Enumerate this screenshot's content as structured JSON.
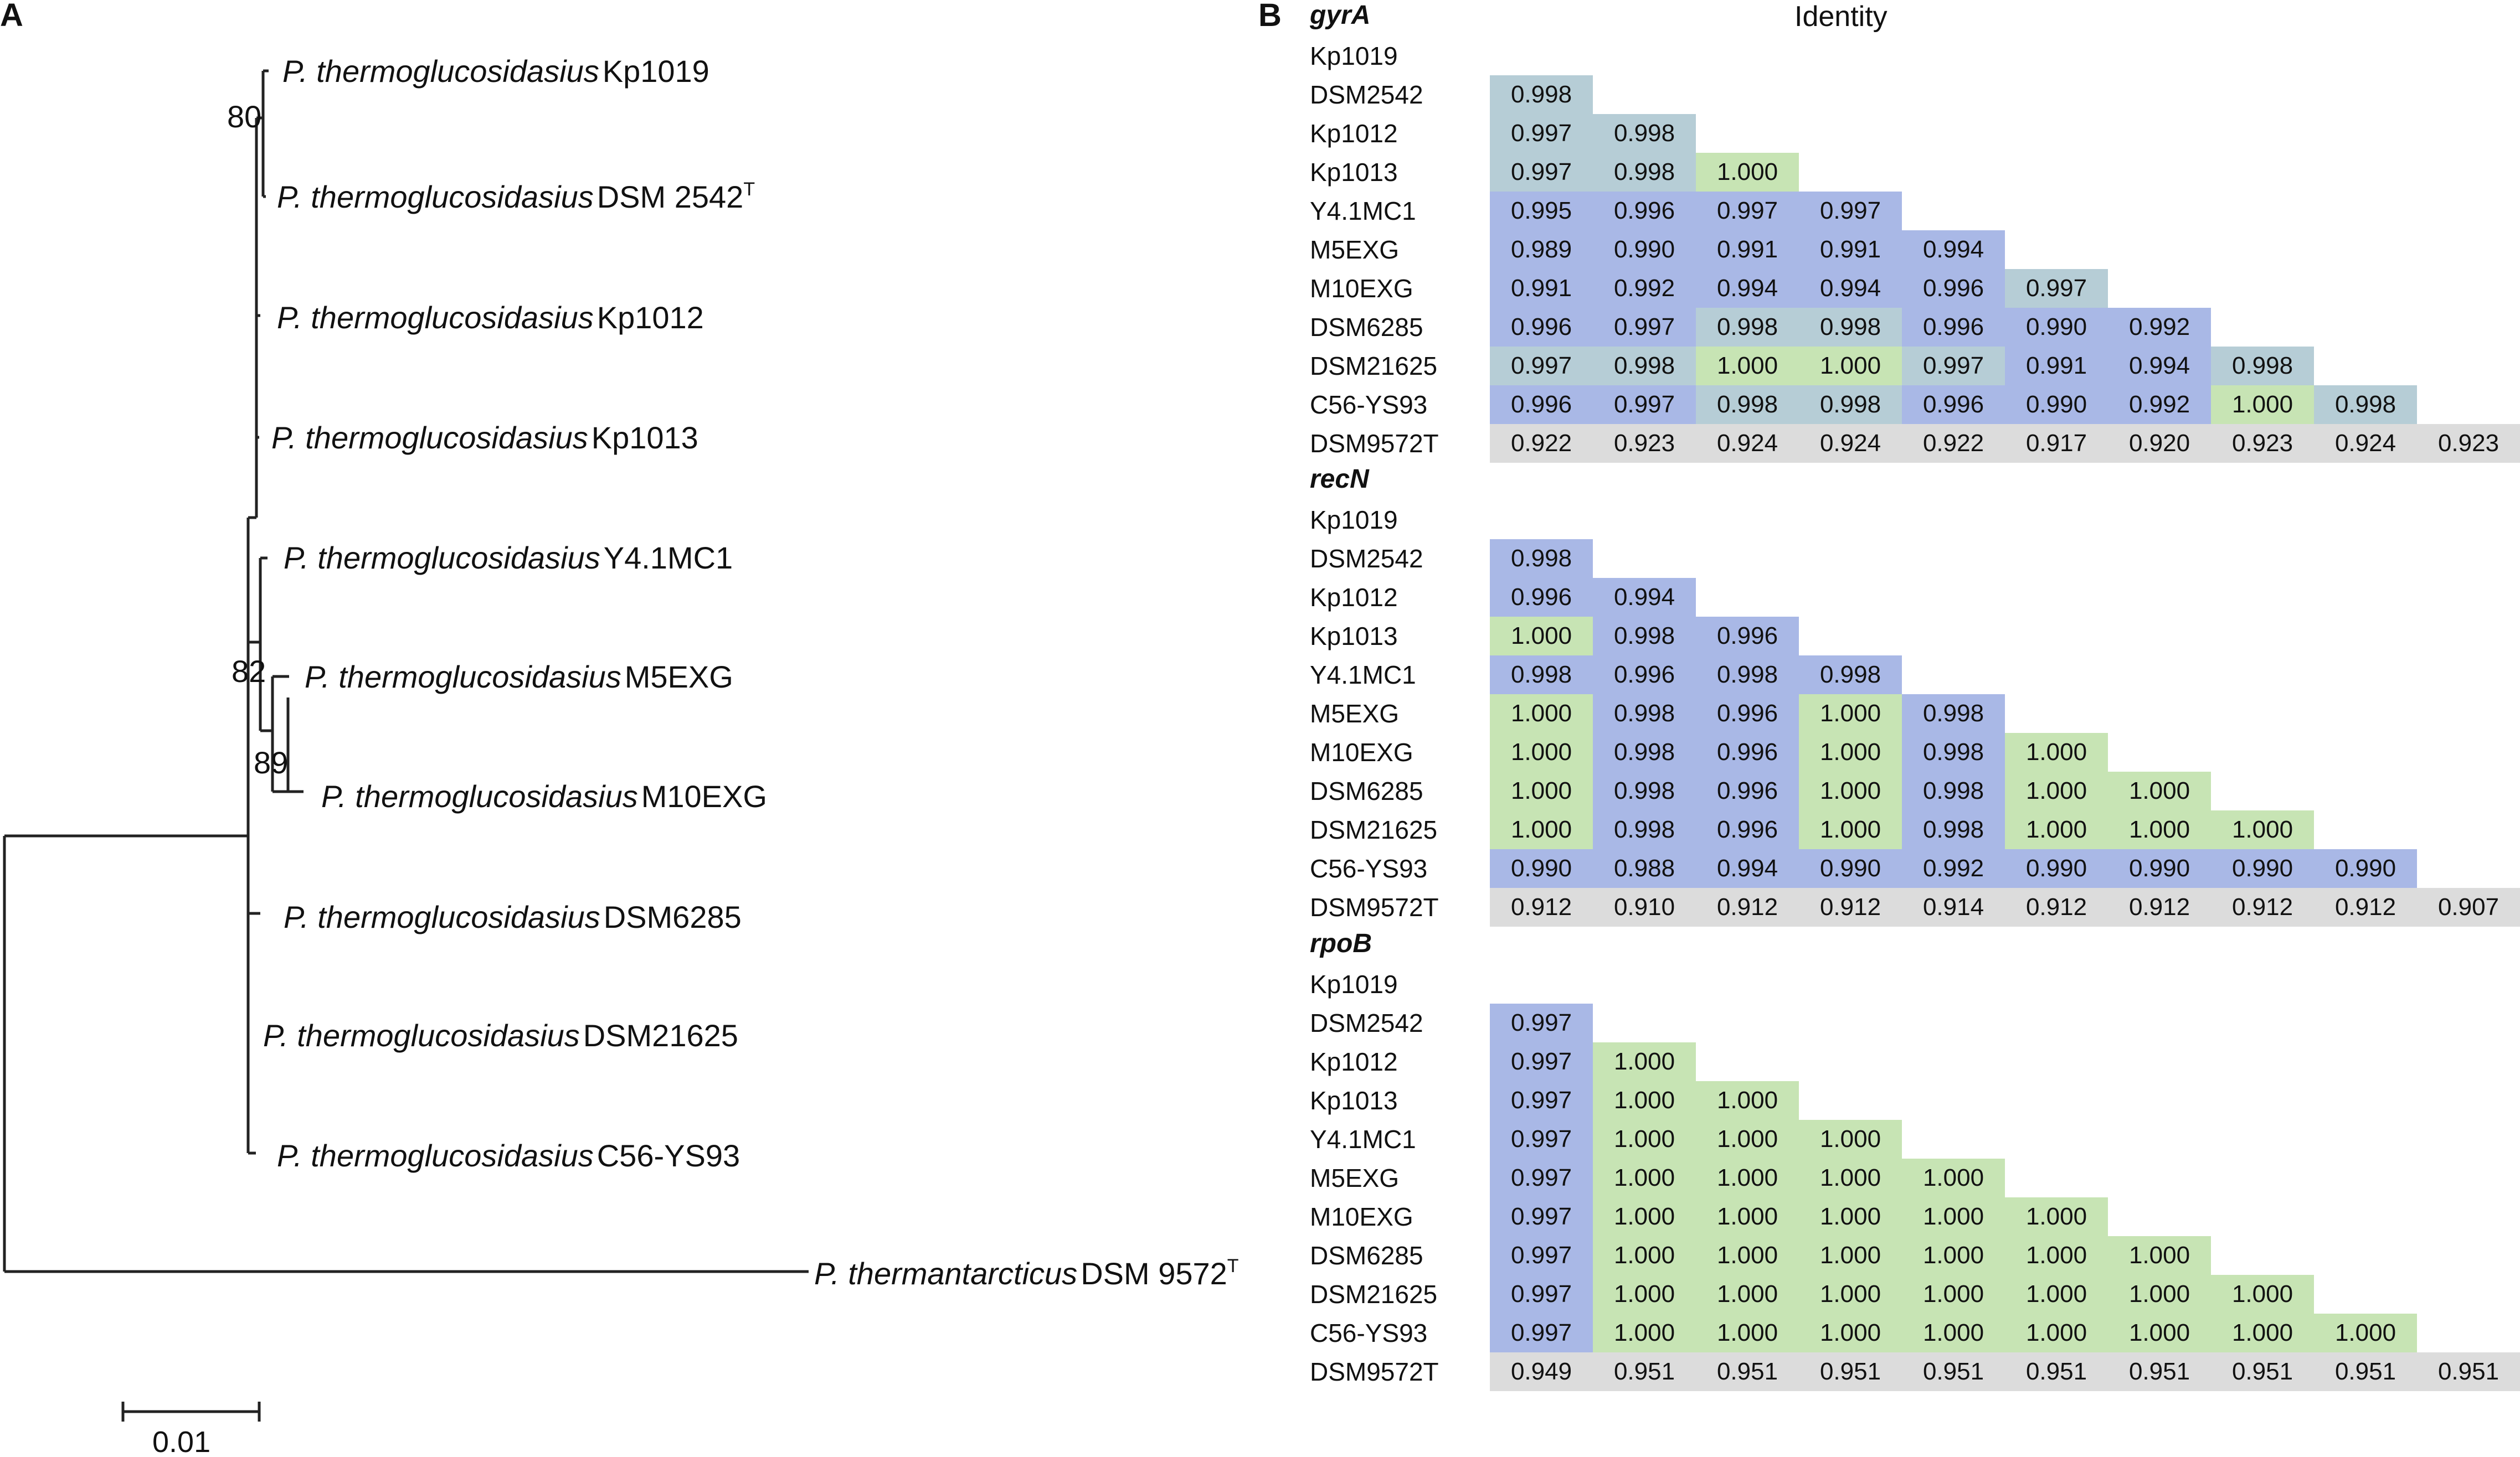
{
  "panels": {
    "a": "A",
    "b": "B"
  },
  "tree": {
    "genus_a": "P. thermoglucosidasius",
    "genus_b": "P. thermantarcticus",
    "taxa": [
      {
        "genus": "P. thermoglucosidasius",
        "strain": "Kp1019",
        "sup": ""
      },
      {
        "genus": "P. thermoglucosidasius",
        "strain": "DSM 2542",
        "sup": "T"
      },
      {
        "genus": "P. thermoglucosidasius",
        "strain": "Kp1012",
        "sup": ""
      },
      {
        "genus": "P. thermoglucosidasius",
        "strain": "Kp1013",
        "sup": ""
      },
      {
        "genus": "P. thermoglucosidasius",
        "strain": "Y4.1MC1",
        "sup": ""
      },
      {
        "genus": "P. thermoglucosidasius",
        "strain": "M5EXG",
        "sup": ""
      },
      {
        "genus": "P. thermoglucosidasius",
        "strain": "M10EXG",
        "sup": ""
      },
      {
        "genus": "P. thermoglucosidasius",
        "strain": "DSM6285",
        "sup": ""
      },
      {
        "genus": "P. thermoglucosidasius",
        "strain": "DSM21625",
        "sup": ""
      },
      {
        "genus": "P. thermoglucosidasius",
        "strain": "C56-YS93",
        "sup": ""
      },
      {
        "genus": "P. thermantarcticus",
        "strain": "DSM 9572",
        "sup": "T"
      }
    ],
    "bootstrap": [
      "80",
      "82",
      "89"
    ],
    "scale_label": "0.01"
  },
  "identity_title": "Identity",
  "legend_colors": {
    "blue": "#a9b8e6",
    "green": "#c7e4b4",
    "teal": "#b6cdd6",
    "gray": "#dcdcdc"
  },
  "matrices": [
    {
      "title": "gyrA",
      "rows": [
        "Kp1019",
        "DSM2542",
        "Kp1012",
        "Kp1013",
        "Y4.1MC1",
        "M5EXG",
        "M10EXG",
        "DSM6285",
        "DSM21625",
        "C56-YS93",
        "DSM9572T"
      ],
      "values": [
        [],
        [
          "0.998"
        ],
        [
          "0.997",
          "0.998"
        ],
        [
          "0.997",
          "0.998",
          "1.000"
        ],
        [
          "0.995",
          "0.996",
          "0.997",
          "0.997"
        ],
        [
          "0.989",
          "0.990",
          "0.991",
          "0.991",
          "0.994"
        ],
        [
          "0.991",
          "0.992",
          "0.994",
          "0.994",
          "0.996",
          "0.997"
        ],
        [
          "0.996",
          "0.997",
          "0.998",
          "0.998",
          "0.996",
          "0.990",
          "0.992"
        ],
        [
          "0.997",
          "0.998",
          "1.000",
          "1.000",
          "0.997",
          "0.991",
          "0.994",
          "0.998"
        ],
        [
          "0.996",
          "0.997",
          "0.998",
          "0.998",
          "0.996",
          "0.990",
          "0.992",
          "1.000",
          "0.998"
        ],
        [
          "0.922",
          "0.923",
          "0.924",
          "0.924",
          "0.922",
          "0.917",
          "0.920",
          "0.923",
          "0.924",
          "0.923"
        ]
      ],
      "colors": [
        [],
        [
          "t"
        ],
        [
          "t",
          "t"
        ],
        [
          "t",
          "t",
          "g"
        ],
        [
          "b",
          "b",
          "b",
          "b"
        ],
        [
          "b",
          "b",
          "b",
          "b",
          "b"
        ],
        [
          "b",
          "b",
          "b",
          "b",
          "b",
          "t"
        ],
        [
          "b",
          "b",
          "t",
          "t",
          "b",
          "b",
          "b"
        ],
        [
          "t",
          "t",
          "g",
          "g",
          "t",
          "b",
          "b",
          "t"
        ],
        [
          "b",
          "b",
          "t",
          "t",
          "b",
          "b",
          "b",
          "g",
          "t"
        ],
        [
          "x",
          "x",
          "x",
          "x",
          "x",
          "x",
          "x",
          "x",
          "x",
          "x"
        ]
      ]
    },
    {
      "title": "recN",
      "rows": [
        "Kp1019",
        "DSM2542",
        "Kp1012",
        "Kp1013",
        "Y4.1MC1",
        "M5EXG",
        "M10EXG",
        "DSM6285",
        "DSM21625",
        "C56-YS93",
        "DSM9572T"
      ],
      "values": [
        [],
        [
          "0.998"
        ],
        [
          "0.996",
          "0.994"
        ],
        [
          "1.000",
          "0.998",
          "0.996"
        ],
        [
          "0.998",
          "0.996",
          "0.998",
          "0.998"
        ],
        [
          "1.000",
          "0.998",
          "0.996",
          "1.000",
          "0.998"
        ],
        [
          "1.000",
          "0.998",
          "0.996",
          "1.000",
          "0.998",
          "1.000"
        ],
        [
          "1.000",
          "0.998",
          "0.996",
          "1.000",
          "0.998",
          "1.000",
          "1.000"
        ],
        [
          "1.000",
          "0.998",
          "0.996",
          "1.000",
          "0.998",
          "1.000",
          "1.000",
          "1.000"
        ],
        [
          "0.990",
          "0.988",
          "0.994",
          "0.990",
          "0.992",
          "0.990",
          "0.990",
          "0.990",
          "0.990"
        ],
        [
          "0.912",
          "0.910",
          "0.912",
          "0.912",
          "0.914",
          "0.912",
          "0.912",
          "0.912",
          "0.912",
          "0.907"
        ]
      ],
      "colors": [
        [],
        [
          "b"
        ],
        [
          "b",
          "b"
        ],
        [
          "g",
          "b",
          "b"
        ],
        [
          "b",
          "b",
          "b",
          "b"
        ],
        [
          "g",
          "b",
          "b",
          "g",
          "b"
        ],
        [
          "g",
          "b",
          "b",
          "g",
          "b",
          "g"
        ],
        [
          "g",
          "b",
          "b",
          "g",
          "b",
          "g",
          "g"
        ],
        [
          "g",
          "b",
          "b",
          "g",
          "b",
          "g",
          "g",
          "g"
        ],
        [
          "b",
          "b",
          "b",
          "b",
          "b",
          "b",
          "b",
          "b",
          "b"
        ],
        [
          "x",
          "x",
          "x",
          "x",
          "x",
          "x",
          "x",
          "x",
          "x",
          "x"
        ]
      ]
    },
    {
      "title": "rpoB",
      "rows": [
        "Kp1019",
        "DSM2542",
        "Kp1012",
        "Kp1013",
        "Y4.1MC1",
        "M5EXG",
        "M10EXG",
        "DSM6285",
        "DSM21625",
        "C56-YS93",
        "DSM9572T"
      ],
      "values": [
        [],
        [
          "0.997"
        ],
        [
          "0.997",
          "1.000"
        ],
        [
          "0.997",
          "1.000",
          "1.000"
        ],
        [
          "0.997",
          "1.000",
          "1.000",
          "1.000"
        ],
        [
          "0.997",
          "1.000",
          "1.000",
          "1.000",
          "1.000"
        ],
        [
          "0.997",
          "1.000",
          "1.000",
          "1.000",
          "1.000",
          "1.000"
        ],
        [
          "0.997",
          "1.000",
          "1.000",
          "1.000",
          "1.000",
          "1.000",
          "1.000"
        ],
        [
          "0.997",
          "1.000",
          "1.000",
          "1.000",
          "1.000",
          "1.000",
          "1.000",
          "1.000"
        ],
        [
          "0.997",
          "1.000",
          "1.000",
          "1.000",
          "1.000",
          "1.000",
          "1.000",
          "1.000",
          "1.000"
        ],
        [
          "0.949",
          "0.951",
          "0.951",
          "0.951",
          "0.951",
          "0.951",
          "0.951",
          "0.951",
          "0.951",
          "0.951"
        ]
      ],
      "colors": [
        [],
        [
          "b"
        ],
        [
          "b",
          "g"
        ],
        [
          "b",
          "g",
          "g"
        ],
        [
          "b",
          "g",
          "g",
          "g"
        ],
        [
          "b",
          "g",
          "g",
          "g",
          "g"
        ],
        [
          "b",
          "g",
          "g",
          "g",
          "g",
          "g"
        ],
        [
          "b",
          "g",
          "g",
          "g",
          "g",
          "g",
          "g"
        ],
        [
          "b",
          "g",
          "g",
          "g",
          "g",
          "g",
          "g",
          "g"
        ],
        [
          "b",
          "g",
          "g",
          "g",
          "g",
          "g",
          "g",
          "g",
          "g"
        ],
        [
          "x",
          "x",
          "x",
          "x",
          "x",
          "x",
          "x",
          "x",
          "x",
          "x"
        ]
      ]
    }
  ]
}
